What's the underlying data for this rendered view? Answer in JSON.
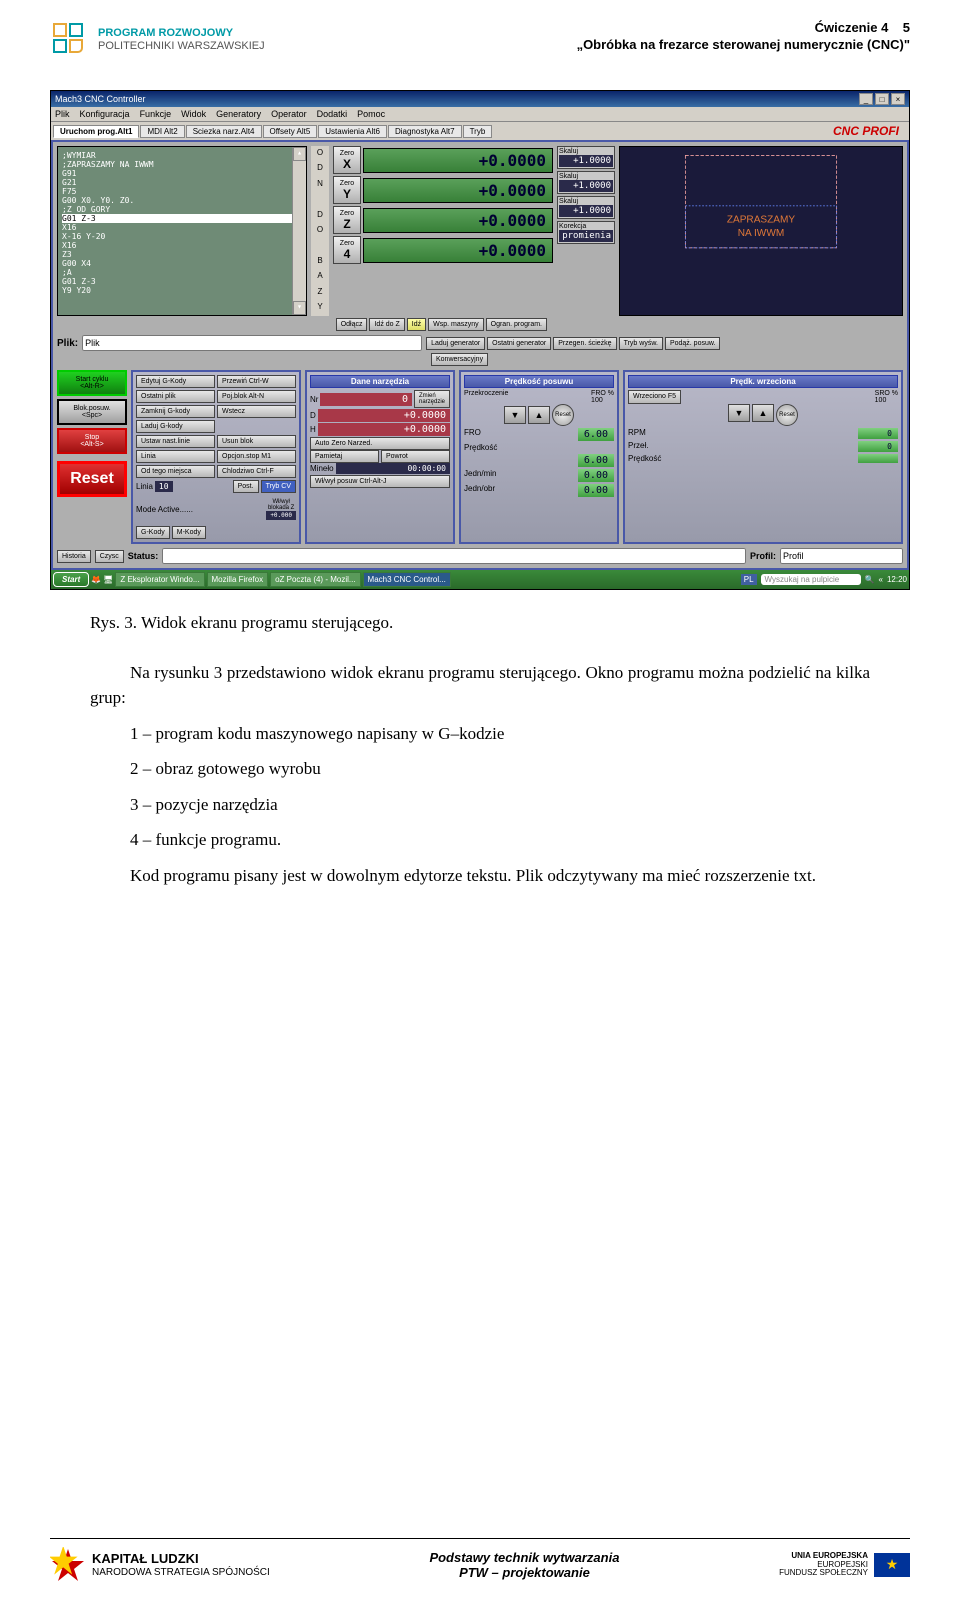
{
  "header": {
    "logo_l1": "PROGRAM ROZWOJOWY",
    "logo_l2": "POLITECHNIKI WARSZAWSKIEJ",
    "ex_line": "Ćwiczenie 4",
    "page_num": "5",
    "ex_title": "„Obróbka na frezarce sterowanej numerycznie (CNC)\""
  },
  "win": {
    "title": "Mach3 CNC Controller",
    "menu": [
      "Plik",
      "Konfiguracja",
      "Funkcje",
      "Widok",
      "Generatory",
      "Operator",
      "Dodatki",
      "Pomoc"
    ],
    "tabs": [
      "Uruchom prog.Alt1",
      "MDI Alt2",
      "Sciezka narz.Alt4",
      "Offsety Alt5",
      "Ustawienia Alt6",
      "Diagnostyka Alt7",
      "Tryb"
    ],
    "brand": "CNC PROFI"
  },
  "gcode": [
    ";WYMIAR",
    ";ZAPRASZAMY NA IWWM",
    "G91",
    "G21",
    "F75",
    "G00 X0. Y0. Z0.",
    ";Z OD GORY",
    "G01 Z-3",
    "X16",
    "X-16 Y-20",
    "X16",
    "Z3",
    "G00 X4",
    ";A",
    "G01 Z-3",
    "Y9 Y20"
  ],
  "gcode_hl_idx": 7,
  "odn": [
    "O",
    "D",
    "N",
    " ",
    "D",
    "O",
    " ",
    "B",
    "A",
    "Z",
    "Y"
  ],
  "axes": [
    {
      "label": "X",
      "val": "+0.0000",
      "scale_lbl": "Skaluj",
      "scale": "+1.0000"
    },
    {
      "label": "Y",
      "val": "+0.0000",
      "scale_lbl": "Skaluj",
      "scale": "+1.0000"
    },
    {
      "label": "Z",
      "val": "+0.0000",
      "scale_lbl": "Skaluj",
      "scale": "+1.0000"
    },
    {
      "label": "4",
      "val": "+0.0000",
      "scale_lbl": "Korekcja",
      "scale": "promienia"
    }
  ],
  "dro_btns": {
    "b1": "Odłącz",
    "b2": "Idź do Z",
    "b3": "Idź",
    "b4": "Wsp. maszyny",
    "b5": "Ogran. program."
  },
  "plik": {
    "lbl": "Plik:",
    "val": "Plik",
    "b1": "Laduj generator",
    "b2": "Ostatni generator",
    "b3": "Konwersacyjny",
    "b4": "",
    "r1": "Przegen. ścieżkę",
    "r2": "Tryb wyśw.",
    "r3": "Podąż. posuw."
  },
  "cycle": {
    "start": "Start cyklu\n<Alt-R>",
    "blok": "Blok.posuw.\n<Spc>",
    "stop": "Stop\n<Alt-S>",
    "reset": "Reset"
  },
  "edit": {
    "b": [
      "Edytuj G-Kody",
      "Przewiń Ctrl-W",
      "Ostatni plik",
      "Poj.blok Alt-N",
      "Zamknij G-kody",
      "Wstecz",
      "Laduj G-kody",
      "",
      "Ustaw nast.linie",
      "Usun blok",
      "Linia",
      "Opcjon.stop M1",
      "Od tego miejsca",
      "Chlodziwo Ctrl-F"
    ],
    "linia_lbl": "Linia",
    "linia_v": "10",
    "post": "Post.",
    "trybcv": "Tryb CV",
    "mode": "Mode Active......",
    "gkody": "G-Kody",
    "mkody": "M-Kody",
    "wlwyl": "Wł/wył\nblokada Z",
    "wlv": "+0.000"
  },
  "tool": {
    "title": "Dane narzędzia",
    "nr_lbl": "Nr",
    "nr": "0",
    "zmien": "Zmień\nnarzędzie",
    "d_lbl": "D",
    "d": "+0.0000",
    "h_lbl": "H",
    "h": "+0.0000",
    "auto": "Auto Zero Narzed.",
    "pam": "Pamietaj",
    "pow": "Powrot",
    "min_lbl": "Mineło",
    "min": "00:00:00",
    "wl": "Wł/wył posuw Ctrl-Alt-J"
  },
  "feed": {
    "title": "Prędkość posuwu",
    "przek": "Przekroczenie",
    "fro_pct": "FRO %",
    "fro_pct_v": "100",
    "reset": "Reset",
    "fro_lbl": "FRO",
    "fro": "6.00",
    "pr_lbl": "Prędkość",
    "pr": "6.00",
    "jm_lbl": "Jedn/min",
    "jm": "0.00",
    "jo_lbl": "Jedn/obr",
    "jo": "0.00"
  },
  "spin": {
    "title": "Prędk. wrzeciona",
    "wrz": "Wrzeciono F5",
    "sro_lbl": "SRO %",
    "sro": "100",
    "reset": "Reset",
    "rpm_lbl": "RPM",
    "rpm": "0",
    "przel_lbl": "Przeł.",
    "przel": "0",
    "pr_lbl": "Prędkość",
    "pr": ""
  },
  "status": {
    "hist": "Historia",
    "czysc": "Czysc",
    "slbl": "Status:",
    "plbl": "Profil:",
    "pval": "Profil"
  },
  "taskbar": {
    "start": "Start",
    "items": [
      "Z Eksplorator Windo...",
      "Mozilla Firefox",
      "oZ Poczta (4) - Mozil...",
      "Mach3 CNC Control..."
    ],
    "active_idx": 3,
    "lang": "PL",
    "search": "Wyszukaj na pulpicie",
    "time": "12:20"
  },
  "body": {
    "caption": "Rys. 3. Widok ekranu programu sterującego.",
    "p1": "Na rysunku 3 przedstawiono widok ekranu programu sterującego. Okno programu można podzielić na kilka grup:",
    "li": [
      "1 – program kodu maszynowego napisany w G–kodzie",
      "2 – obraz gotowego wyrobu",
      "3 – pozycje narzędzia",
      "4 – funkcje programu."
    ],
    "p2": "Kod programu pisany jest w dowolnym edytorze tekstu. Plik odczytywany ma mieć rozszerzenie txt."
  },
  "footer": {
    "kl1": "KAPITAŁ LUDZKI",
    "kl2": "NARODOWA STRATEGIA SPÓJNOŚCI",
    "c1": "Podstawy technik wytwarzania",
    "c2": "PTW – projektowanie",
    "eu1": "UNIA EUROPEJSKA",
    "eu2": "EUROPEJSKI",
    "eu3": "FUNDUSZ SPOŁECZNY"
  },
  "colors": {
    "accent": "#009aa6",
    "dro": "#388038",
    "panel": "#4958a8",
    "red": "#c00000"
  }
}
